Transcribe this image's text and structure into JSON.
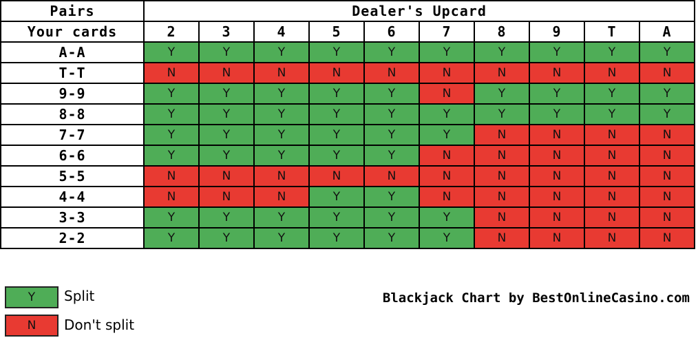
{
  "header": {
    "pairs_label": "Pairs",
    "upcard_label": "Dealer's Upcard",
    "your_cards_label": "Your cards",
    "upcards": [
      "2",
      "3",
      "4",
      "5",
      "6",
      "7",
      "8",
      "9",
      "T",
      "A"
    ]
  },
  "rows": [
    {
      "hand": "A-A",
      "actions": [
        "Y",
        "Y",
        "Y",
        "Y",
        "Y",
        "Y",
        "Y",
        "Y",
        "Y",
        "Y"
      ]
    },
    {
      "hand": "T-T",
      "actions": [
        "N",
        "N",
        "N",
        "N",
        "N",
        "N",
        "N",
        "N",
        "N",
        "N"
      ]
    },
    {
      "hand": "9-9",
      "actions": [
        "Y",
        "Y",
        "Y",
        "Y",
        "Y",
        "N",
        "Y",
        "Y",
        "Y",
        "Y"
      ]
    },
    {
      "hand": "8-8",
      "actions": [
        "Y",
        "Y",
        "Y",
        "Y",
        "Y",
        "Y",
        "Y",
        "Y",
        "Y",
        "Y"
      ]
    },
    {
      "hand": "7-7",
      "actions": [
        "Y",
        "Y",
        "Y",
        "Y",
        "Y",
        "Y",
        "N",
        "N",
        "N",
        "N"
      ]
    },
    {
      "hand": "6-6",
      "actions": [
        "Y",
        "Y",
        "Y",
        "Y",
        "Y",
        "N",
        "N",
        "N",
        "N",
        "N"
      ]
    },
    {
      "hand": "5-5",
      "actions": [
        "N",
        "N",
        "N",
        "N",
        "N",
        "N",
        "N",
        "N",
        "N",
        "N"
      ]
    },
    {
      "hand": "4-4",
      "actions": [
        "N",
        "N",
        "N",
        "Y",
        "Y",
        "N",
        "N",
        "N",
        "N",
        "N"
      ]
    },
    {
      "hand": "3-3",
      "actions": [
        "Y",
        "Y",
        "Y",
        "Y",
        "Y",
        "Y",
        "N",
        "N",
        "N",
        "N"
      ]
    },
    {
      "hand": "2-2",
      "actions": [
        "Y",
        "Y",
        "Y",
        "Y",
        "Y",
        "Y",
        "N",
        "N",
        "N",
        "N"
      ]
    }
  ],
  "legend": {
    "split_symbol": "Y",
    "split_label": "Split",
    "nosplit_symbol": "N",
    "nosplit_label": "Don't split"
  },
  "credit": "Blackjack Chart by BestOnlineCasino.com",
  "colors": {
    "split": "#4fad57",
    "no_split": "#e83a32"
  }
}
